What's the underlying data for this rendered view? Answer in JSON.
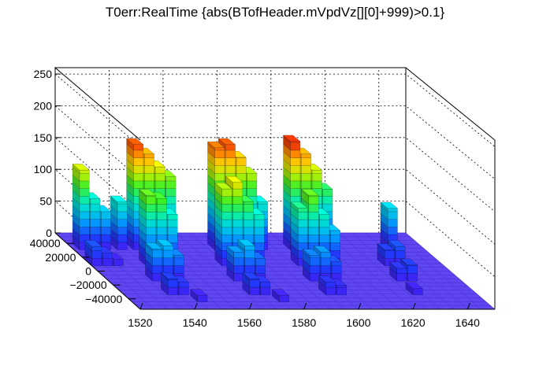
{
  "chart_data": {
    "type": "lego3d",
    "title": "T0err:RealTime {abs(BTofHeader.mVpdVz[][0]+999)>0.1}",
    "xlabel": "",
    "ylabel": "",
    "zlabel": "",
    "x_range": [
      1520,
      1650
    ],
    "y_range": [
      -55000,
      55000
    ],
    "z_range": [
      0,
      260
    ],
    "x_ticks": [
      "1520",
      "1540",
      "1560",
      "1580",
      "1600",
      "1620",
      "1640"
    ],
    "y_ticks": [
      "−40000",
      "−20000",
      "0",
      "20000",
      "40000"
    ],
    "z_ticks": [
      "0",
      "50",
      "100",
      "150",
      "200",
      "250"
    ],
    "grid": true,
    "colormap": "rainbow",
    "bins": [
      {
        "x": 1522,
        "y": 35000,
        "z": 125
      },
      {
        "x": 1526,
        "y": 35000,
        "z": 80
      },
      {
        "x": 1530,
        "y": 35000,
        "z": 60
      },
      {
        "x": 1520,
        "y": 12000,
        "z": 30
      },
      {
        "x": 1524,
        "y": 12000,
        "z": 20
      },
      {
        "x": 1528,
        "y": 12000,
        "z": 10
      },
      {
        "x": 1542,
        "y": 35000,
        "z": 165
      },
      {
        "x": 1546,
        "y": 35000,
        "z": 150
      },
      {
        "x": 1550,
        "y": 35000,
        "z": 130
      },
      {
        "x": 1554,
        "y": 35000,
        "z": 115
      },
      {
        "x": 1536,
        "y": 35000,
        "z": 75
      },
      {
        "x": 1540,
        "y": 12000,
        "z": 110
      },
      {
        "x": 1544,
        "y": 12000,
        "z": 105
      },
      {
        "x": 1548,
        "y": 12000,
        "z": 80
      },
      {
        "x": 1536,
        "y": -10000,
        "z": 50
      },
      {
        "x": 1540,
        "y": -10000,
        "z": 55
      },
      {
        "x": 1544,
        "y": -10000,
        "z": 40
      },
      {
        "x": 1536,
        "y": -30000,
        "z": 25
      },
      {
        "x": 1540,
        "y": -30000,
        "z": 20
      },
      {
        "x": 1544,
        "y": -40000,
        "z": 10
      },
      {
        "x": 1572,
        "y": 35000,
        "z": 160
      },
      {
        "x": 1576,
        "y": 35000,
        "z": 165
      },
      {
        "x": 1580,
        "y": 35000,
        "z": 145
      },
      {
        "x": 1584,
        "y": 35000,
        "z": 120
      },
      {
        "x": 1588,
        "y": 35000,
        "z": 75
      },
      {
        "x": 1568,
        "y": 12000,
        "z": 120
      },
      {
        "x": 1572,
        "y": 12000,
        "z": 130
      },
      {
        "x": 1576,
        "y": 12000,
        "z": 100
      },
      {
        "x": 1580,
        "y": 12000,
        "z": 80
      },
      {
        "x": 1566,
        "y": -10000,
        "z": 45
      },
      {
        "x": 1570,
        "y": -10000,
        "z": 55
      },
      {
        "x": 1574,
        "y": -10000,
        "z": 35
      },
      {
        "x": 1566,
        "y": -30000,
        "z": 25
      },
      {
        "x": 1570,
        "y": -30000,
        "z": 20
      },
      {
        "x": 1574,
        "y": -40000,
        "z": 10
      },
      {
        "x": 1600,
        "y": 35000,
        "z": 170
      },
      {
        "x": 1604,
        "y": 35000,
        "z": 150
      },
      {
        "x": 1608,
        "y": 35000,
        "z": 125
      },
      {
        "x": 1612,
        "y": 35000,
        "z": 95
      },
      {
        "x": 1596,
        "y": 12000,
        "z": 90
      },
      {
        "x": 1600,
        "y": 12000,
        "z": 110
      },
      {
        "x": 1604,
        "y": 12000,
        "z": 80
      },
      {
        "x": 1608,
        "y": 12000,
        "z": 55
      },
      {
        "x": 1594,
        "y": -10000,
        "z": 40
      },
      {
        "x": 1598,
        "y": -10000,
        "z": 45
      },
      {
        "x": 1602,
        "y": -10000,
        "z": 30
      },
      {
        "x": 1594,
        "y": -30000,
        "z": 20
      },
      {
        "x": 1598,
        "y": -30000,
        "z": 15
      },
      {
        "x": 1636,
        "y": 35000,
        "z": 65
      },
      {
        "x": 1628,
        "y": 12000,
        "z": 25
      },
      {
        "x": 1632,
        "y": 12000,
        "z": 30
      },
      {
        "x": 1626,
        "y": -10000,
        "z": 20
      },
      {
        "x": 1630,
        "y": -10000,
        "z": 25
      },
      {
        "x": 1626,
        "y": -30000,
        "z": 10
      }
    ]
  }
}
